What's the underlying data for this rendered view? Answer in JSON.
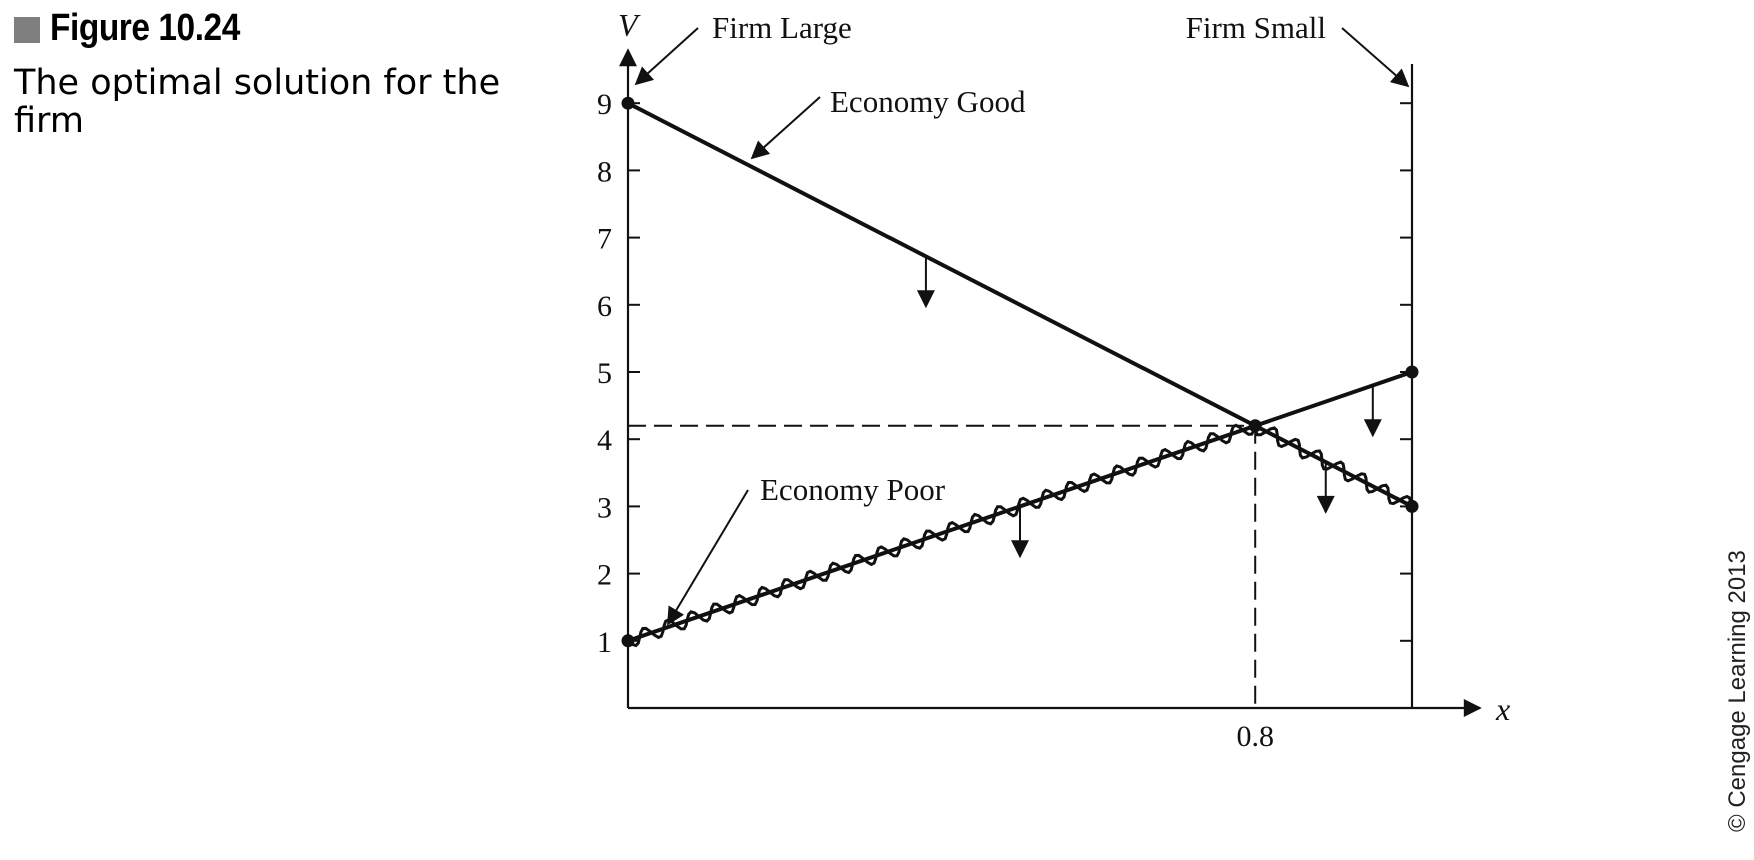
{
  "caption": {
    "figure_label": "Figure 10.24",
    "description": "The optimal solution for the firm"
  },
  "copyright": "© Cengage Learning 2013",
  "chart_data": {
    "type": "line",
    "title": "",
    "xlabel": "x",
    "ylabel": "V",
    "xlim": [
      0,
      1
    ],
    "ylim": [
      0,
      9
    ],
    "y_ticks": [
      1,
      2,
      3,
      4,
      5,
      6,
      7,
      8,
      9
    ],
    "x_tick_labels": [
      {
        "x": 0.8,
        "label": "0.8"
      }
    ],
    "grid": false,
    "axis_labels": {
      "left": "Firm Large",
      "right": "Firm Small"
    },
    "series": [
      {
        "name": "Economy Good",
        "x": [
          0,
          1
        ],
        "y": [
          9,
          3
        ],
        "style": "solid"
      },
      {
        "name": "Economy Poor",
        "x": [
          0,
          1
        ],
        "y": [
          1,
          5
        ],
        "style": "solid"
      }
    ],
    "lower_envelope": {
      "x": [
        0,
        0.8,
        1
      ],
      "y": [
        1,
        4.2,
        3
      ],
      "style": "wavy"
    },
    "optimum": {
      "x": 0.8,
      "y": 4.2
    },
    "arrows": [
      {
        "x": 0.38,
        "y": 6.72
      },
      {
        "x": 0.5,
        "y": 3
      },
      {
        "x": 0.89,
        "y": 3.66
      },
      {
        "x": 0.95,
        "y": 4.8
      }
    ],
    "colors": {
      "ink": "#111111"
    }
  }
}
